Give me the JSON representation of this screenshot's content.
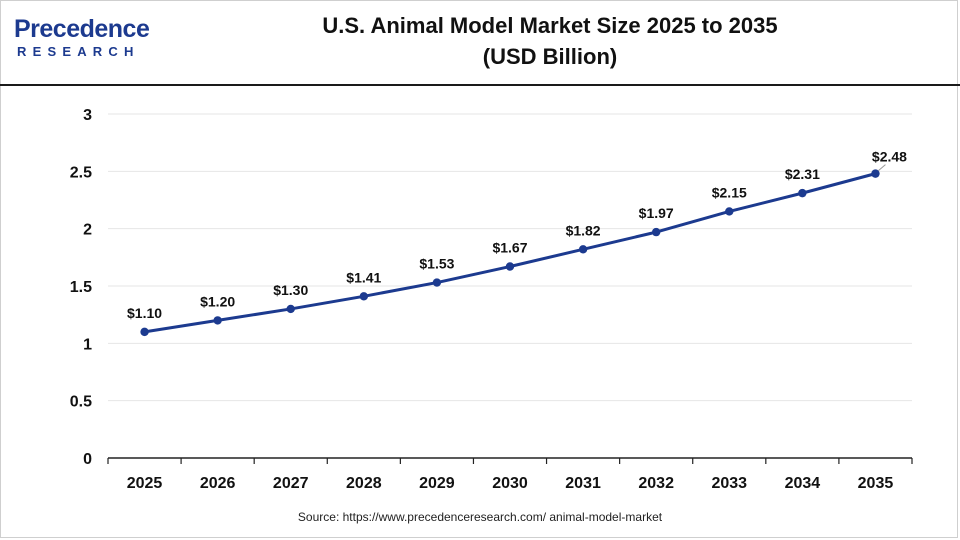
{
  "logo": {
    "top": "Precedence",
    "bottom": "RESEARCH"
  },
  "title": {
    "line1": "U.S. Animal Model Market Size 2025 to 2035",
    "line2": "(USD Billion)"
  },
  "source": "Source: https://www.precedenceresearch.com/ animal-model-market",
  "colors": {
    "line": "#1c3a8f",
    "marker": "#1c3a8f",
    "grid": "#e6e6e6",
    "axis": "#222222"
  },
  "chart_data": {
    "type": "line",
    "title": "U.S. Animal Model Market Size 2025 to 2035 (USD Billion)",
    "xlabel": "",
    "ylabel": "",
    "categories": [
      "2025",
      "2026",
      "2027",
      "2028",
      "2029",
      "2030",
      "2031",
      "2032",
      "2033",
      "2034",
      "2035"
    ],
    "values": [
      1.1,
      1.2,
      1.3,
      1.41,
      1.53,
      1.67,
      1.82,
      1.97,
      2.15,
      2.31,
      2.48
    ],
    "data_labels": [
      "$1.10",
      "$1.20",
      "$1.30",
      "$1.41",
      "$1.53",
      "$1.67",
      "$1.82",
      "$1.97",
      "$2.15",
      "$2.31",
      "$2.48"
    ],
    "ylim": [
      0,
      3
    ],
    "yticks": [
      0,
      0.5,
      1,
      1.5,
      2,
      2.5,
      3
    ],
    "ytick_labels": [
      "0",
      "0.5",
      "1",
      "1.5",
      "2",
      "2.5",
      "3"
    ],
    "grid": true,
    "legend": "none"
  }
}
